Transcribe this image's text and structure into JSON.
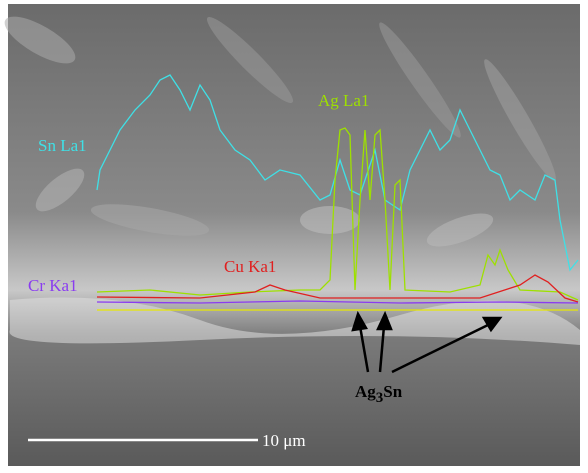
{
  "labels": {
    "sn": "Sn La1",
    "ag": "Ag La1",
    "cu": "Cu Ka1",
    "cr": "Cr Ka1"
  },
  "phase": {
    "main": "Ag",
    "sub": "3",
    "rest": "Sn"
  },
  "scale_bar": "10 μm"
}
